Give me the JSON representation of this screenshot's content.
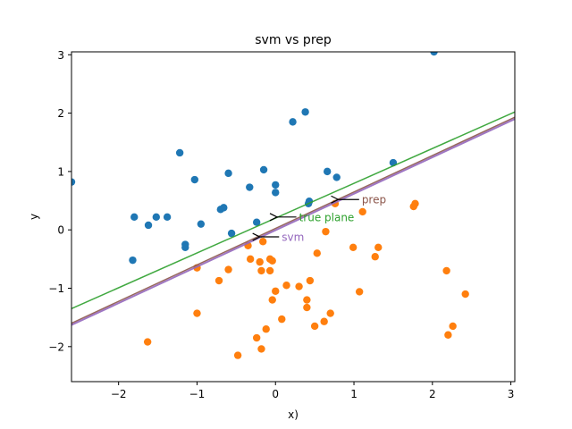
{
  "chart_data": {
    "type": "scatter",
    "title": "svm vs prep",
    "xlabel": "x)",
    "ylabel": "y",
    "xlim": [
      -2.6,
      3.05
    ],
    "ylim": [
      -2.6,
      3.05
    ],
    "xticks": [
      -2,
      -1,
      0,
      1,
      2,
      3
    ],
    "yticks": [
      -2,
      -1,
      0,
      1,
      2,
      3
    ],
    "grid": false,
    "colors": {
      "class_a": "#1f77b4",
      "class_b": "#ff7f0e",
      "true_plane": "#2ca02c",
      "svm": "#9467bd",
      "prep": "#8c564b"
    },
    "series": [
      {
        "points": [
          [
            -2.6,
            0.82
          ],
          [
            -1.8,
            0.22
          ],
          [
            -1.62,
            0.08
          ],
          [
            -1.52,
            0.22
          ],
          [
            -1.38,
            0.22
          ],
          [
            -1.82,
            -0.52
          ],
          [
            -1.22,
            1.32
          ],
          [
            -1.15,
            -0.25
          ],
          [
            -1.15,
            -0.3
          ],
          [
            -1.03,
            0.86
          ],
          [
            -0.95,
            0.1
          ],
          [
            -0.7,
            0.35
          ],
          [
            -0.66,
            0.38
          ],
          [
            -0.6,
            0.97
          ],
          [
            -0.56,
            -0.06
          ],
          [
            -0.33,
            0.73
          ],
          [
            -0.24,
            0.13
          ],
          [
            -0.15,
            1.03
          ],
          [
            0.0,
            0.64
          ],
          [
            0.0,
            0.77
          ],
          [
            0.22,
            1.85
          ],
          [
            0.38,
            2.02
          ],
          [
            0.42,
            0.45
          ],
          [
            0.43,
            0.49
          ],
          [
            0.66,
            1.0
          ],
          [
            0.78,
            0.9
          ],
          [
            1.5,
            1.15
          ],
          [
            2.02,
            3.05
          ]
        ]
      },
      {
        "points": [
          [
            -1.63,
            -1.92
          ],
          [
            -1.0,
            -0.65
          ],
          [
            -1.0,
            -1.43
          ],
          [
            -0.72,
            -0.87
          ],
          [
            -0.6,
            -0.68
          ],
          [
            -0.48,
            -2.15
          ],
          [
            -0.35,
            -0.27
          ],
          [
            -0.32,
            -0.5
          ],
          [
            -0.2,
            -0.55
          ],
          [
            -0.18,
            -0.7
          ],
          [
            -0.16,
            -0.2
          ],
          [
            -0.12,
            -1.7
          ],
          [
            -0.07,
            -0.5
          ],
          [
            -0.07,
            -0.7
          ],
          [
            -0.04,
            -1.2
          ],
          [
            -0.04,
            -0.53
          ],
          [
            0.0,
            -1.05
          ],
          [
            0.08,
            -1.53
          ],
          [
            0.14,
            -0.95
          ],
          [
            0.3,
            -0.97
          ],
          [
            0.4,
            -1.2
          ],
          [
            0.4,
            -1.33
          ],
          [
            0.44,
            -0.87
          ],
          [
            0.5,
            -1.65
          ],
          [
            0.53,
            -0.4
          ],
          [
            0.62,
            -1.57
          ],
          [
            0.64,
            -0.03
          ],
          [
            0.7,
            -1.43
          ],
          [
            0.76,
            0.45
          ],
          [
            0.99,
            -0.3
          ],
          [
            1.07,
            -1.06
          ],
          [
            1.11,
            0.31
          ],
          [
            1.27,
            -0.46
          ],
          [
            1.31,
            -0.3
          ],
          [
            1.76,
            0.4
          ],
          [
            1.78,
            0.45
          ],
          [
            2.18,
            -0.7
          ],
          [
            2.2,
            -1.8
          ],
          [
            2.26,
            -1.65
          ],
          [
            2.42,
            -1.1
          ],
          [
            -0.24,
            -1.85
          ],
          [
            -0.18,
            -2.04
          ]
        ]
      }
    ],
    "lines": [
      {
        "name": "true plane",
        "x": [
          -2.6,
          3.05
        ],
        "y": [
          -1.35,
          2.02
        ]
      },
      {
        "name": "prep",
        "x": [
          -2.6,
          3.05
        ],
        "y": [
          -1.6,
          1.93
        ]
      },
      {
        "name": "svm",
        "x": [
          -2.6,
          3.05
        ],
        "y": [
          -1.63,
          1.9
        ]
      }
    ],
    "annotations": [
      {
        "text": "prep",
        "point": [
          0.8,
          0.52
        ],
        "text_at": [
          1.1,
          0.52
        ]
      },
      {
        "text": "true plane",
        "point": [
          0.02,
          0.22
        ],
        "text_at": [
          0.3,
          0.22
        ]
      },
      {
        "text": "svm",
        "point": [
          -0.2,
          -0.12
        ],
        "text_at": [
          0.08,
          -0.12
        ]
      }
    ]
  }
}
